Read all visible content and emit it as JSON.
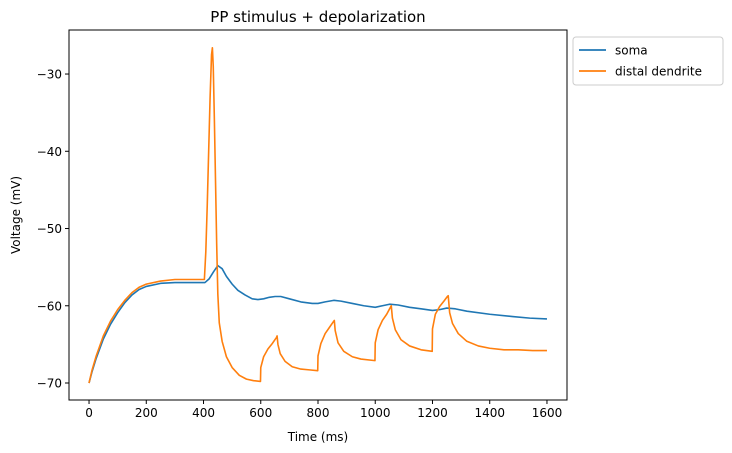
{
  "chart_data": {
    "type": "line",
    "title": "PP stimulus + depolarization",
    "xlabel": "Time (ms)",
    "ylabel": "Voltage (mV)",
    "xlim": [
      -70,
      1670
    ],
    "ylim": [
      -72.2,
      -24.3
    ],
    "xticks": [
      0,
      200,
      400,
      600,
      800,
      1000,
      1200,
      1400,
      1600
    ],
    "yticks": [
      -70,
      -60,
      -50,
      -40,
      -30
    ],
    "xtick_labels": [
      "0",
      "200",
      "400",
      "600",
      "800",
      "1000",
      "1200",
      "1400",
      "1600"
    ],
    "ytick_labels": [
      "−70",
      "−60",
      "−50",
      "−40",
      "−30"
    ],
    "grid": false,
    "legend_placement": "outside-top-right",
    "series": [
      {
        "name": "soma",
        "color": "#1f77b4",
        "points": [
          [
            0,
            -70
          ],
          [
            10,
            -68.6
          ],
          [
            25,
            -66.8
          ],
          [
            50,
            -64.3
          ],
          [
            75,
            -62.4
          ],
          [
            100,
            -60.9
          ],
          [
            125,
            -59.6
          ],
          [
            150,
            -58.6
          ],
          [
            175,
            -57.9
          ],
          [
            200,
            -57.5
          ],
          [
            250,
            -57.1
          ],
          [
            300,
            -57.0
          ],
          [
            350,
            -57.0
          ],
          [
            405,
            -57.0
          ],
          [
            420,
            -56.5
          ],
          [
            435,
            -55.6
          ],
          [
            450,
            -54.8
          ],
          [
            465,
            -55.2
          ],
          [
            480,
            -56.2
          ],
          [
            500,
            -57.2
          ],
          [
            520,
            -58.0
          ],
          [
            545,
            -58.6
          ],
          [
            570,
            -59.1
          ],
          [
            590,
            -59.2
          ],
          [
            610,
            -59.1
          ],
          [
            630,
            -58.9
          ],
          [
            650,
            -58.8
          ],
          [
            670,
            -58.8
          ],
          [
            700,
            -59.1
          ],
          [
            740,
            -59.5
          ],
          [
            780,
            -59.7
          ],
          [
            800,
            -59.7
          ],
          [
            825,
            -59.5
          ],
          [
            855,
            -59.3
          ],
          [
            880,
            -59.4
          ],
          [
            920,
            -59.7
          ],
          [
            960,
            -60.0
          ],
          [
            1000,
            -60.2
          ],
          [
            1025,
            -60.0
          ],
          [
            1050,
            -59.8
          ],
          [
            1080,
            -59.9
          ],
          [
            1120,
            -60.2
          ],
          [
            1160,
            -60.4
          ],
          [
            1200,
            -60.6
          ],
          [
            1225,
            -60.5
          ],
          [
            1250,
            -60.3
          ],
          [
            1280,
            -60.4
          ],
          [
            1320,
            -60.7
          ],
          [
            1400,
            -61.1
          ],
          [
            1480,
            -61.4
          ],
          [
            1540,
            -61.6
          ],
          [
            1600,
            -61.7
          ]
        ]
      },
      {
        "name": "distal dendrite",
        "color": "#ff7f0e",
        "points": [
          [
            0,
            -70
          ],
          [
            10,
            -68.4
          ],
          [
            25,
            -66.5
          ],
          [
            50,
            -63.9
          ],
          [
            75,
            -62.0
          ],
          [
            100,
            -60.5
          ],
          [
            125,
            -59.3
          ],
          [
            150,
            -58.3
          ],
          [
            175,
            -57.6
          ],
          [
            200,
            -57.2
          ],
          [
            250,
            -56.8
          ],
          [
            300,
            -56.6
          ],
          [
            350,
            -56.6
          ],
          [
            403,
            -56.6
          ],
          [
            408,
            -53.0
          ],
          [
            413,
            -47.0
          ],
          [
            418,
            -40.0
          ],
          [
            423,
            -33.0
          ],
          [
            428,
            -27.5
          ],
          [
            431,
            -26.6
          ],
          [
            434,
            -29.0
          ],
          [
            438,
            -36.0
          ],
          [
            442,
            -44.0
          ],
          [
            446,
            -52.0
          ],
          [
            450,
            -58.5
          ],
          [
            455,
            -62.2
          ],
          [
            465,
            -64.6
          ],
          [
            480,
            -66.6
          ],
          [
            500,
            -68.0
          ],
          [
            525,
            -69.0
          ],
          [
            550,
            -69.5
          ],
          [
            575,
            -69.7
          ],
          [
            599,
            -69.8
          ],
          [
            600,
            -68.0
          ],
          [
            610,
            -66.6
          ],
          [
            625,
            -65.6
          ],
          [
            640,
            -64.9
          ],
          [
            655,
            -64.1
          ],
          [
            657,
            -63.9
          ],
          [
            660,
            -65.0
          ],
          [
            668,
            -66.2
          ],
          [
            685,
            -67.2
          ],
          [
            710,
            -67.9
          ],
          [
            740,
            -68.2
          ],
          [
            770,
            -68.3
          ],
          [
            799,
            -68.4
          ],
          [
            800,
            -66.5
          ],
          [
            810,
            -64.9
          ],
          [
            825,
            -63.6
          ],
          [
            840,
            -62.8
          ],
          [
            855,
            -62.0
          ],
          [
            857,
            -61.9
          ],
          [
            860,
            -63.2
          ],
          [
            870,
            -64.8
          ],
          [
            890,
            -65.9
          ],
          [
            920,
            -66.6
          ],
          [
            950,
            -66.9
          ],
          [
            999,
            -67.1
          ],
          [
            1000,
            -64.8
          ],
          [
            1010,
            -63.1
          ],
          [
            1025,
            -61.9
          ],
          [
            1040,
            -61.1
          ],
          [
            1053,
            -60.2
          ],
          [
            1056,
            -60.0
          ],
          [
            1060,
            -61.6
          ],
          [
            1070,
            -63.1
          ],
          [
            1090,
            -64.4
          ],
          [
            1120,
            -65.2
          ],
          [
            1160,
            -65.7
          ],
          [
            1199,
            -65.9
          ],
          [
            1200,
            -63.0
          ],
          [
            1210,
            -61.1
          ],
          [
            1225,
            -60.1
          ],
          [
            1240,
            -59.4
          ],
          [
            1252,
            -58.8
          ],
          [
            1255,
            -58.7
          ],
          [
            1260,
            -60.9
          ],
          [
            1270,
            -62.3
          ],
          [
            1290,
            -63.6
          ],
          [
            1320,
            -64.6
          ],
          [
            1360,
            -65.2
          ],
          [
            1400,
            -65.5
          ],
          [
            1450,
            -65.7
          ],
          [
            1500,
            -65.7
          ],
          [
            1550,
            -65.8
          ],
          [
            1600,
            -65.8
          ]
        ]
      }
    ]
  }
}
